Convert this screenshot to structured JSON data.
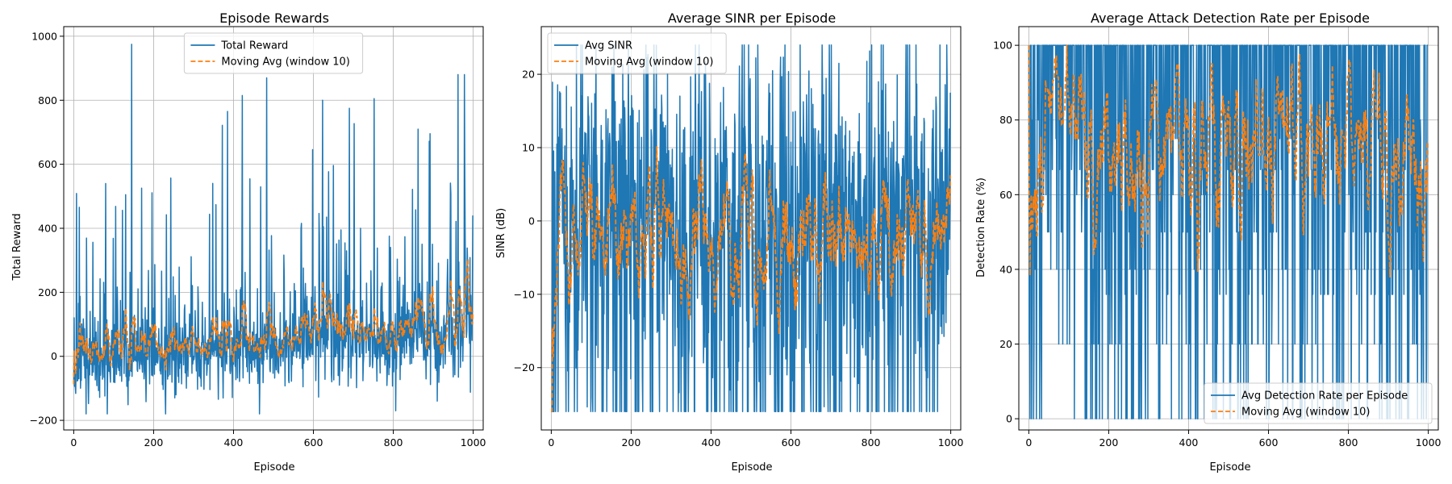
{
  "colors": {
    "series_primary": "#1f77b4",
    "series_moving_avg": "#ff7f0e",
    "grid": "#b0b0b0",
    "axes": "#000000"
  },
  "chart_data": [
    {
      "type": "line",
      "title": "Episode Rewards",
      "xlabel": "Episode",
      "ylabel": "Total Reward",
      "xlim": [
        -25,
        1025
      ],
      "ylim": [
        -230,
        1030
      ],
      "xticks": [
        0,
        200,
        400,
        600,
        800,
        1000
      ],
      "yticks": [
        -200,
        0,
        200,
        400,
        600,
        800,
        1000
      ],
      "grid": true,
      "legend_position": "top-center",
      "generator": {
        "kind": "reward",
        "seed": 11,
        "n": 1000,
        "min": -180,
        "max": 980,
        "window": 10
      },
      "series": [
        {
          "name": "Total Reward",
          "color": "#1f77b4",
          "style": "solid"
        },
        {
          "name": "Moving Avg (window 10)",
          "color": "#ff7f0e",
          "style": "dashed"
        }
      ]
    },
    {
      "type": "line",
      "title": "Average SINR per Episode",
      "xlabel": "Episode",
      "ylabel": "SINR (dB)",
      "xlim": [
        -25,
        1025
      ],
      "ylim": [
        -28.5,
        26.5
      ],
      "xticks": [
        0,
        200,
        400,
        600,
        800,
        1000
      ],
      "yticks": [
        -20,
        -10,
        0,
        10,
        20
      ],
      "grid": true,
      "legend_position": "top-left",
      "generator": {
        "kind": "sinr",
        "seed": 23,
        "n": 1000,
        "min": -26,
        "max": 24,
        "window": 10
      },
      "series": [
        {
          "name": "Avg SINR",
          "color": "#1f77b4",
          "style": "solid"
        },
        {
          "name": "Moving Avg (window 10)",
          "color": "#ff7f0e",
          "style": "dashed"
        }
      ]
    },
    {
      "type": "line",
      "title": "Average Attack Detection Rate per Episode",
      "xlabel": "Episode",
      "ylabel": "Detection Rate (%)",
      "xlim": [
        -25,
        1025
      ],
      "ylim": [
        -3,
        105
      ],
      "xticks": [
        0,
        200,
        400,
        600,
        800,
        1000
      ],
      "yticks": [
        0,
        20,
        40,
        60,
        80,
        100
      ],
      "grid": true,
      "legend_position": "bottom-right",
      "generator": {
        "kind": "detection",
        "seed": 37,
        "n": 1000,
        "min": 0,
        "max": 100,
        "window": 10
      },
      "series": [
        {
          "name": "Avg Detection Rate per Episode",
          "color": "#1f77b4",
          "style": "solid"
        },
        {
          "name": "Moving Avg (window 10)",
          "color": "#ff7f0e",
          "style": "dashed"
        }
      ]
    }
  ]
}
